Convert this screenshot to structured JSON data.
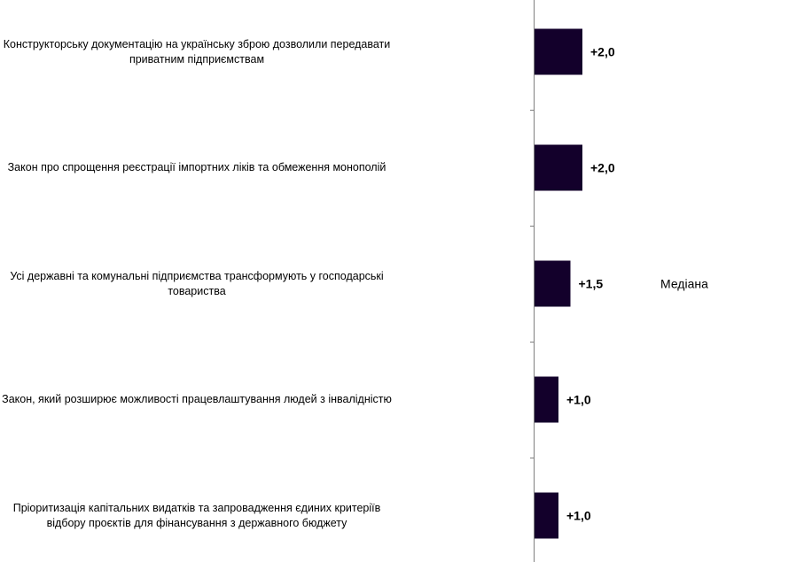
{
  "chart_data": {
    "type": "bar",
    "orientation": "horizontal",
    "categories": [
      "Конструкторську документацію на українську зброю дозволили передавати приватним підприємствам",
      "Закон про спрощення реєстрації імпортних ліків та обмеження монополій",
      "Усі державні та комунальні підприємства трансформують у господарські товариства",
      "Закон, який розширює можливості працевлаштування людей з інвалідністю",
      "Пріоритизація капітальних видатків та запровадження єдиних критеріїв відбору проєктів для фінансування з державного бюджету"
    ],
    "values": [
      2.0,
      2.0,
      1.5,
      1.0,
      1.0
    ],
    "value_labels": [
      "+2,0",
      "+2,0",
      "+1,5",
      "+1,0",
      "+1,0"
    ],
    "annotations": [
      {
        "text": "Медіана",
        "category_index": 2
      }
    ],
    "bar_color": "#13002b",
    "grid": false,
    "legend": "none"
  }
}
